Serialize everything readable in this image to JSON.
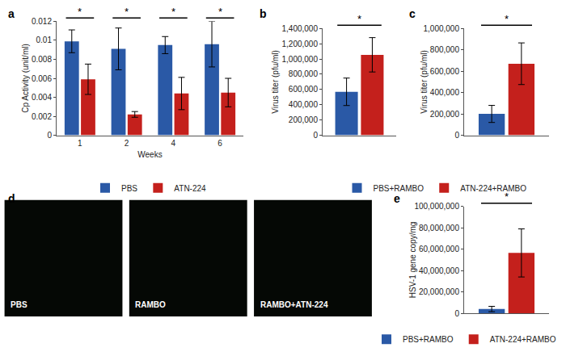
{
  "chart_data": [
    {
      "type": "bar",
      "title": "a",
      "xlabel": "Weeks",
      "ylabel": "Cp Activity (unit/ml)",
      "categories": [
        "1",
        "2",
        "4",
        "6"
      ],
      "series": [
        {
          "name": "PBS",
          "color": "#2a59a6",
          "values": [
            0.0099,
            0.0091,
            0.0095,
            0.0096
          ],
          "errors": [
            0.0012,
            0.0022,
            0.0009,
            0.0024
          ]
        },
        {
          "name": "ATN-224",
          "color": "#c4201c",
          "values": [
            0.0059,
            0.0022,
            0.0044,
            0.0045
          ],
          "errors": [
            0.0016,
            0.0003,
            0.0017,
            0.0015
          ]
        }
      ],
      "ylim": [
        0,
        0.012
      ],
      "yticks": [
        0,
        0.002,
        0.004,
        0.006,
        0.008,
        0.01,
        0.012
      ],
      "grid": false,
      "legend": "bottom",
      "annotations": [
        {
          "text": "*",
          "category": "1"
        },
        {
          "text": "*",
          "category": "2"
        },
        {
          "text": "*",
          "category": "4"
        },
        {
          "text": "*",
          "category": "6"
        }
      ]
    },
    {
      "type": "bar",
      "title": "b",
      "ylabel": "Virus titer (pfu/ml)",
      "categories": [
        null
      ],
      "series": [
        {
          "name": "PBS+RAMBO",
          "color": "#2a59a6",
          "values": [
            570000
          ],
          "errors": [
            180000
          ]
        },
        {
          "name": "ATN-224+RAMBO",
          "color": "#c4201c",
          "values": [
            1055000
          ],
          "errors": [
            225000
          ]
        }
      ],
      "ylim": [
        0,
        1400000
      ],
      "yticks": [
        0,
        {
          "value": 200000,
          "label": "200,000"
        },
        {
          "value": 400000,
          "label": "400,000"
        },
        {
          "value": 600000,
          "label": "600,000"
        },
        {
          "value": 800000,
          "label": "800,000"
        },
        {
          "value": 1000000,
          "label": "1,000,000"
        },
        {
          "value": 1200000,
          "label": "1,200,000"
        },
        {
          "value": 1400000,
          "label": "1,400,000"
        }
      ],
      "grid": false,
      "legend": "bottom",
      "tick_labels": "y",
      "annotations": [
        {
          "text": "*",
          "category": null
        }
      ]
    },
    {
      "type": "bar",
      "title": "c",
      "ylabel": "Virus titer (pfu/ml)",
      "categories": [
        null
      ],
      "series": [
        {
          "name": "PBS+RAMBO",
          "color": "#2a59a6",
          "values": [
            200000
          ],
          "errors": [
            80000
          ]
        },
        {
          "name": "ATN-224+RAMBO",
          "color": "#c4201c",
          "values": [
            670000
          ],
          "errors": [
            195000
          ]
        }
      ],
      "ylim": [
        0,
        1000000
      ],
      "yticks": [
        0,
        {
          "value": 200000,
          "label": "200,000"
        },
        {
          "value": 400000,
          "label": "400,000"
        },
        {
          "value": 600000,
          "label": "600,000"
        },
        {
          "value": 800000,
          "label": "800,000"
        },
        {
          "value": 1000000,
          "label": "1,000,000"
        }
      ],
      "grid": false,
      "tick_labels": "y",
      "annotations": [
        {
          "text": "*",
          "category": null
        }
      ]
    },
    {
      "type": "bar",
      "title": "e",
      "ylabel": "HSV-1 gene copy/mg",
      "categories": [
        null
      ],
      "series": [
        {
          "name": "PBS+RAMBO",
          "color": "#2a59a6",
          "values": [
            4000000
          ],
          "errors": [
            2500000
          ]
        },
        {
          "name": "ATN-224+RAMBO",
          "color": "#c4201c",
          "values": [
            56500000
          ],
          "errors": [
            22500000
          ]
        }
      ],
      "ylim": [
        0,
        100000000
      ],
      "yticks": [
        0,
        {
          "value": 20000000,
          "label": "20,000,000"
        },
        {
          "value": 40000000,
          "label": "40,000,000"
        },
        {
          "value": 60000000,
          "label": "60,000,000"
        },
        {
          "value": 80000000,
          "label": "80,000,000"
        },
        {
          "value": 100000000,
          "label": "100,000,000"
        }
      ],
      "grid": false,
      "legend": "bottom",
      "tick_labels": "y",
      "annotations": [
        {
          "text": "*",
          "category": null
        }
      ]
    }
  ],
  "image_panel": {
    "title": "d",
    "labels": [
      "PBS",
      "RAMBO",
      "RAMBO+ATN-224"
    ]
  }
}
